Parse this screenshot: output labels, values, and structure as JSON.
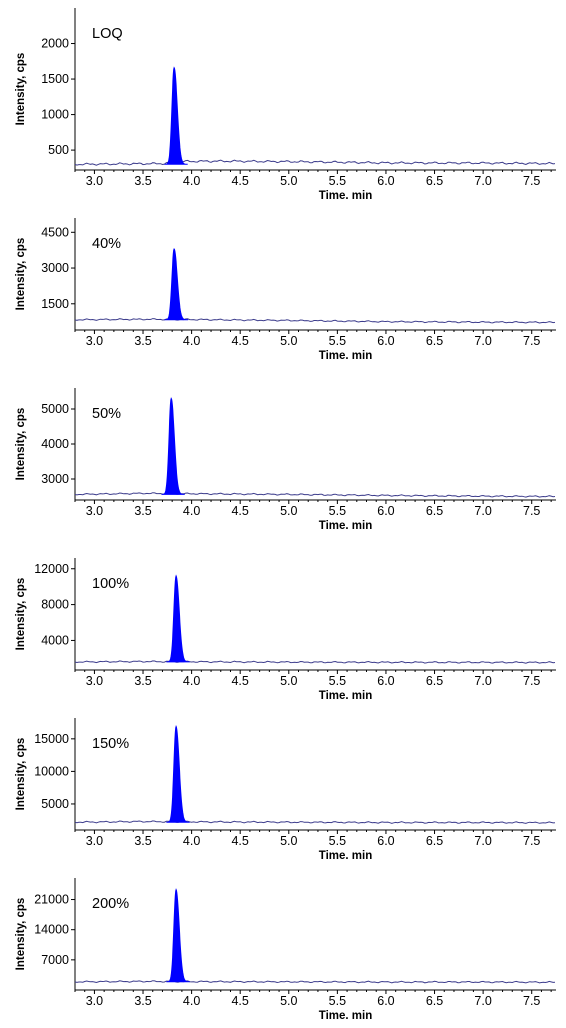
{
  "chart_data": [
    {
      "type": "line",
      "panel_label": "LOQ",
      "xlabel": "Time. min",
      "ylabel": "Intensity, cps",
      "xlim": [
        2.8,
        7.75
      ],
      "ylim": [
        220,
        2500
      ],
      "xticks": [
        3.0,
        3.5,
        4.0,
        4.5,
        5.0,
        5.5,
        6.0,
        6.5,
        7.0,
        7.5
      ],
      "yticks": [
        500,
        1000,
        1500,
        2000
      ],
      "series": [
        {
          "color": "#0000ff",
          "baseline": [
            [
              2.8,
              300
            ],
            [
              3.2,
              305
            ],
            [
              3.7,
              310
            ],
            [
              3.9,
              340
            ],
            [
              4.3,
              345
            ],
            [
              5.0,
              338
            ],
            [
              5.5,
              330
            ],
            [
              6.0,
              320
            ],
            [
              7.0,
              318
            ],
            [
              7.75,
              310
            ]
          ],
          "peak": {
            "rt": 3.82,
            "height": 1660,
            "base": 300
          }
        }
      ]
    },
    {
      "type": "line",
      "panel_label": "40%",
      "xlabel": "Time. min",
      "ylabel": "Intensity, cps",
      "xlim": [
        2.8,
        7.75
      ],
      "ylim": [
        400,
        5100
      ],
      "xticks": [
        3.0,
        3.5,
        4.0,
        4.5,
        5.0,
        5.5,
        6.0,
        6.5,
        7.0,
        7.5
      ],
      "yticks": [
        1500,
        3000,
        4500
      ],
      "series": [
        {
          "color": "#0000ff",
          "baseline": [
            [
              2.8,
              830
            ],
            [
              3.5,
              850
            ],
            [
              4.0,
              840
            ],
            [
              5.0,
              800
            ],
            [
              6.0,
              750
            ],
            [
              7.0,
              730
            ],
            [
              7.75,
              720
            ]
          ],
          "peak": {
            "rt": 3.82,
            "height": 3800,
            "base": 830
          }
        }
      ]
    },
    {
      "type": "line",
      "panel_label": "50%",
      "xlabel": "Time. min",
      "ylabel": "Intensity, cps",
      "xlim": [
        2.8,
        7.75
      ],
      "ylim": [
        2400,
        5600
      ],
      "xticks": [
        3.0,
        3.5,
        4.0,
        4.5,
        5.0,
        5.5,
        6.0,
        6.5,
        7.0,
        7.5
      ],
      "yticks": [
        3000,
        4000,
        5000
      ],
      "series": [
        {
          "color": "#0000ff",
          "baseline": [
            [
              2.8,
              2560
            ],
            [
              3.5,
              2590
            ],
            [
              4.0,
              2580
            ],
            [
              5.0,
              2560
            ],
            [
              6.0,
              2530
            ],
            [
              7.0,
              2510
            ],
            [
              7.75,
              2500
            ]
          ],
          "peak": {
            "rt": 3.79,
            "height": 5300,
            "base": 2560
          }
        }
      ]
    },
    {
      "type": "line",
      "panel_label": "100%",
      "xlabel": "Time. min",
      "ylabel": "Intensity, cps",
      "xlim": [
        2.8,
        7.75
      ],
      "ylim": [
        700,
        13200
      ],
      "xticks": [
        3.0,
        3.5,
        4.0,
        4.5,
        5.0,
        5.5,
        6.0,
        6.5,
        7.0,
        7.5
      ],
      "yticks": [
        4000,
        8000,
        12000
      ],
      "series": [
        {
          "color": "#0000ff",
          "baseline": [
            [
              2.8,
              1600
            ],
            [
              3.5,
              1650
            ],
            [
              4.0,
              1620
            ],
            [
              5.0,
              1580
            ],
            [
              6.0,
              1560
            ],
            [
              7.0,
              1550
            ],
            [
              7.75,
              1540
            ]
          ],
          "peak": {
            "rt": 3.84,
            "height": 11200,
            "base": 1600
          }
        }
      ]
    },
    {
      "type": "line",
      "panel_label": "150%",
      "xlabel": "Time. min",
      "ylabel": "Intensity, cps",
      "xlim": [
        2.8,
        7.75
      ],
      "ylim": [
        1000,
        18200
      ],
      "xticks": [
        3.0,
        3.5,
        4.0,
        4.5,
        5.0,
        5.5,
        6.0,
        6.5,
        7.0,
        7.5
      ],
      "yticks": [
        5000,
        10000,
        15000
      ],
      "series": [
        {
          "color": "#0000ff",
          "baseline": [
            [
              2.8,
              2200
            ],
            [
              3.5,
              2300
            ],
            [
              4.0,
              2250
            ],
            [
              5.0,
              2200
            ],
            [
              6.0,
              2150
            ],
            [
              7.0,
              2150
            ],
            [
              7.75,
              2120
            ]
          ],
          "peak": {
            "rt": 3.84,
            "height": 16900,
            "base": 2200
          }
        }
      ]
    },
    {
      "type": "line",
      "panel_label": "200%",
      "xlabel": "Time. min",
      "ylabel": "Intensity, cps",
      "xlim": [
        2.8,
        7.75
      ],
      "ylim": [
        0,
        26000
      ],
      "xticks": [
        3.0,
        3.5,
        4.0,
        4.5,
        5.0,
        5.5,
        6.0,
        6.5,
        7.0,
        7.5
      ],
      "yticks": [
        7000,
        14000,
        21000
      ],
      "series": [
        {
          "color": "#0000ff",
          "baseline": [
            [
              2.8,
              1900
            ],
            [
              3.5,
              2000
            ],
            [
              4.0,
              1950
            ],
            [
              5.0,
              1900
            ],
            [
              6.0,
              1850
            ],
            [
              7.0,
              1850
            ],
            [
              7.75,
              1800
            ]
          ],
          "peak": {
            "rt": 3.84,
            "height": 23300,
            "base": 1900
          }
        }
      ]
    }
  ],
  "colors": {
    "peak_fill": "#0000ff",
    "baseline": "#3c3c8c",
    "axis": "#000000"
  }
}
